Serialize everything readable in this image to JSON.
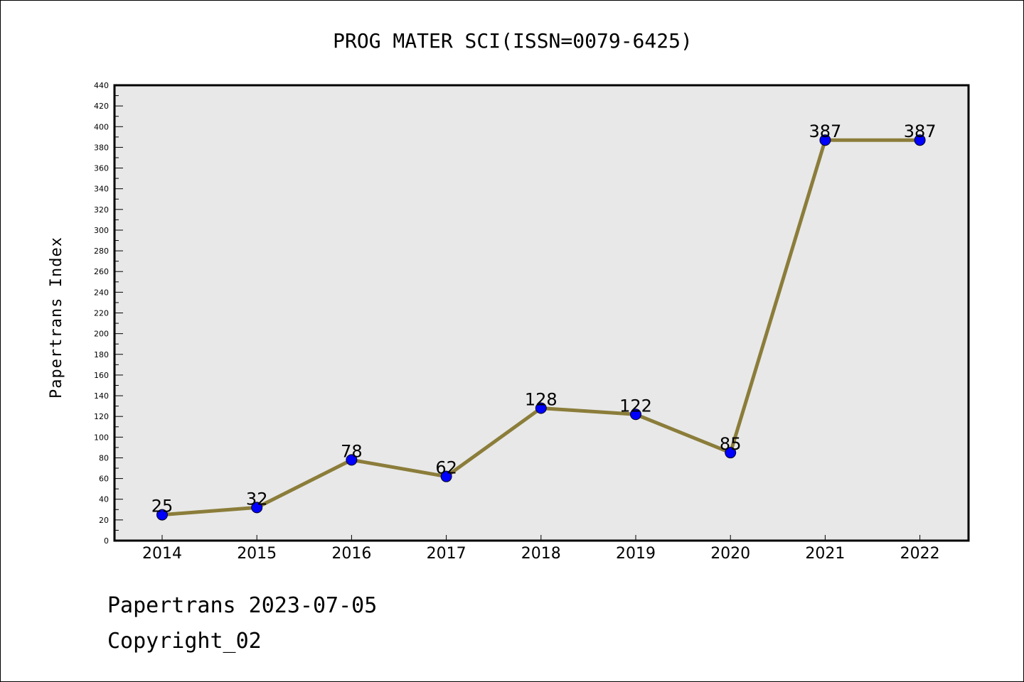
{
  "chart_data": {
    "type": "line",
    "title": "PROG MATER SCI(ISSN=0079-6425)",
    "ylabel": "Papertrans Index",
    "xlabel": "",
    "categories": [
      "2014",
      "2015",
      "2016",
      "2017",
      "2018",
      "2019",
      "2020",
      "2021",
      "2022"
    ],
    "series": [
      {
        "values": [
          25,
          32,
          78,
          62,
          128,
          122,
          85,
          387,
          387
        ]
      }
    ],
    "data_labels": [
      "25",
      "32",
      "78",
      "62",
      "128",
      "122",
      "85",
      "387",
      "387"
    ],
    "ylim": [
      0,
      440
    ],
    "y_major_step": 20,
    "grid": false,
    "legend": "none",
    "colors": {
      "line": "#8b7d3a",
      "marker": "#0000ff",
      "plot_background": "#e8e8e8",
      "frame": "#000000"
    }
  },
  "footer": {
    "line1": "Papertrans 2023-07-05",
    "line2": "Copyright_02"
  }
}
